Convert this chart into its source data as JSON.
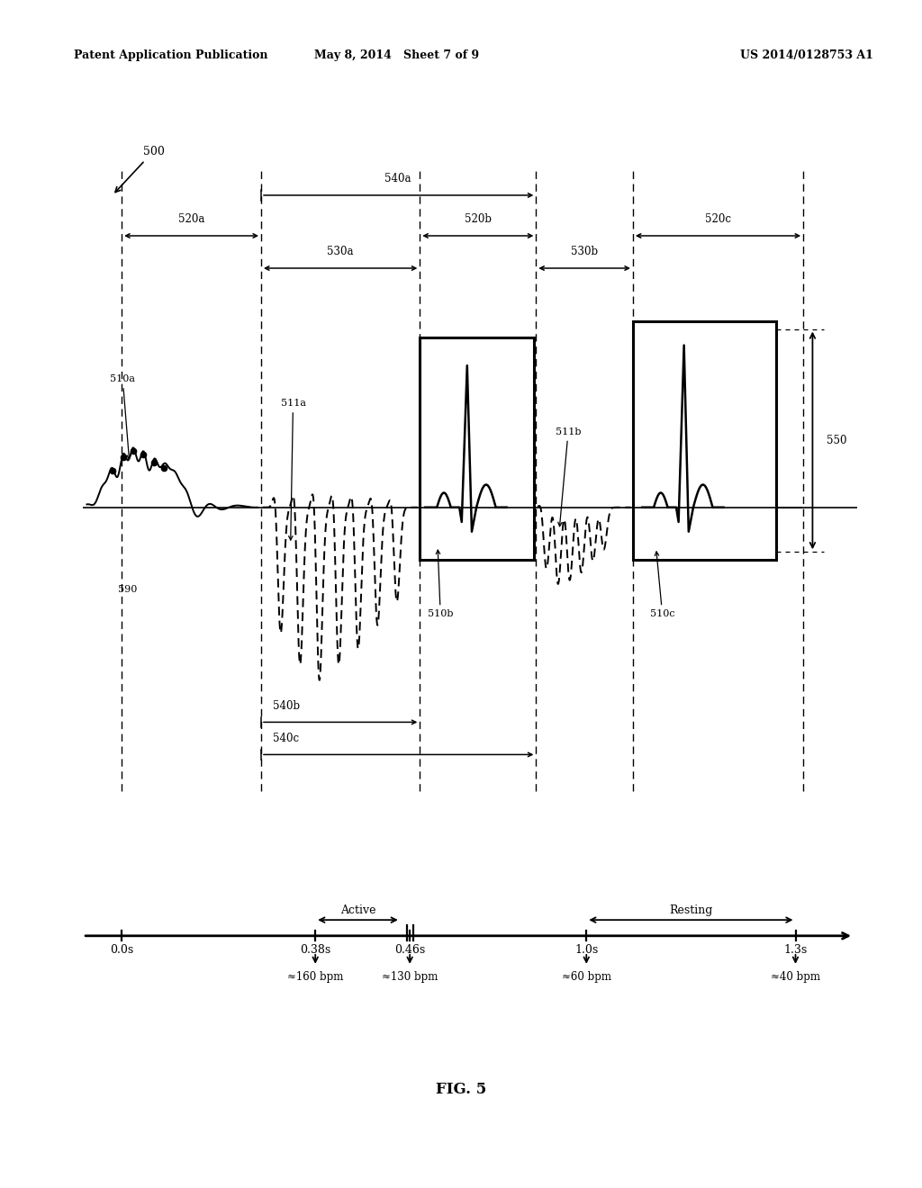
{
  "header_left": "Patent Application Publication",
  "header_mid": "May 8, 2014   Sheet 7 of 9",
  "header_right": "US 2014/0128753 A1",
  "fig_label": "FIG. 5",
  "background_color": "#ffffff",
  "timeline_labels": [
    "0.0s",
    "0.38s",
    "0.46s",
    "1.0s",
    "1.3s"
  ],
  "timeline_bpm": [
    "≈160 bpm",
    "≈130 bpm",
    "≈60 bpm",
    "≈40 bpm"
  ],
  "active_label": "Active",
  "resting_label": "Resting"
}
